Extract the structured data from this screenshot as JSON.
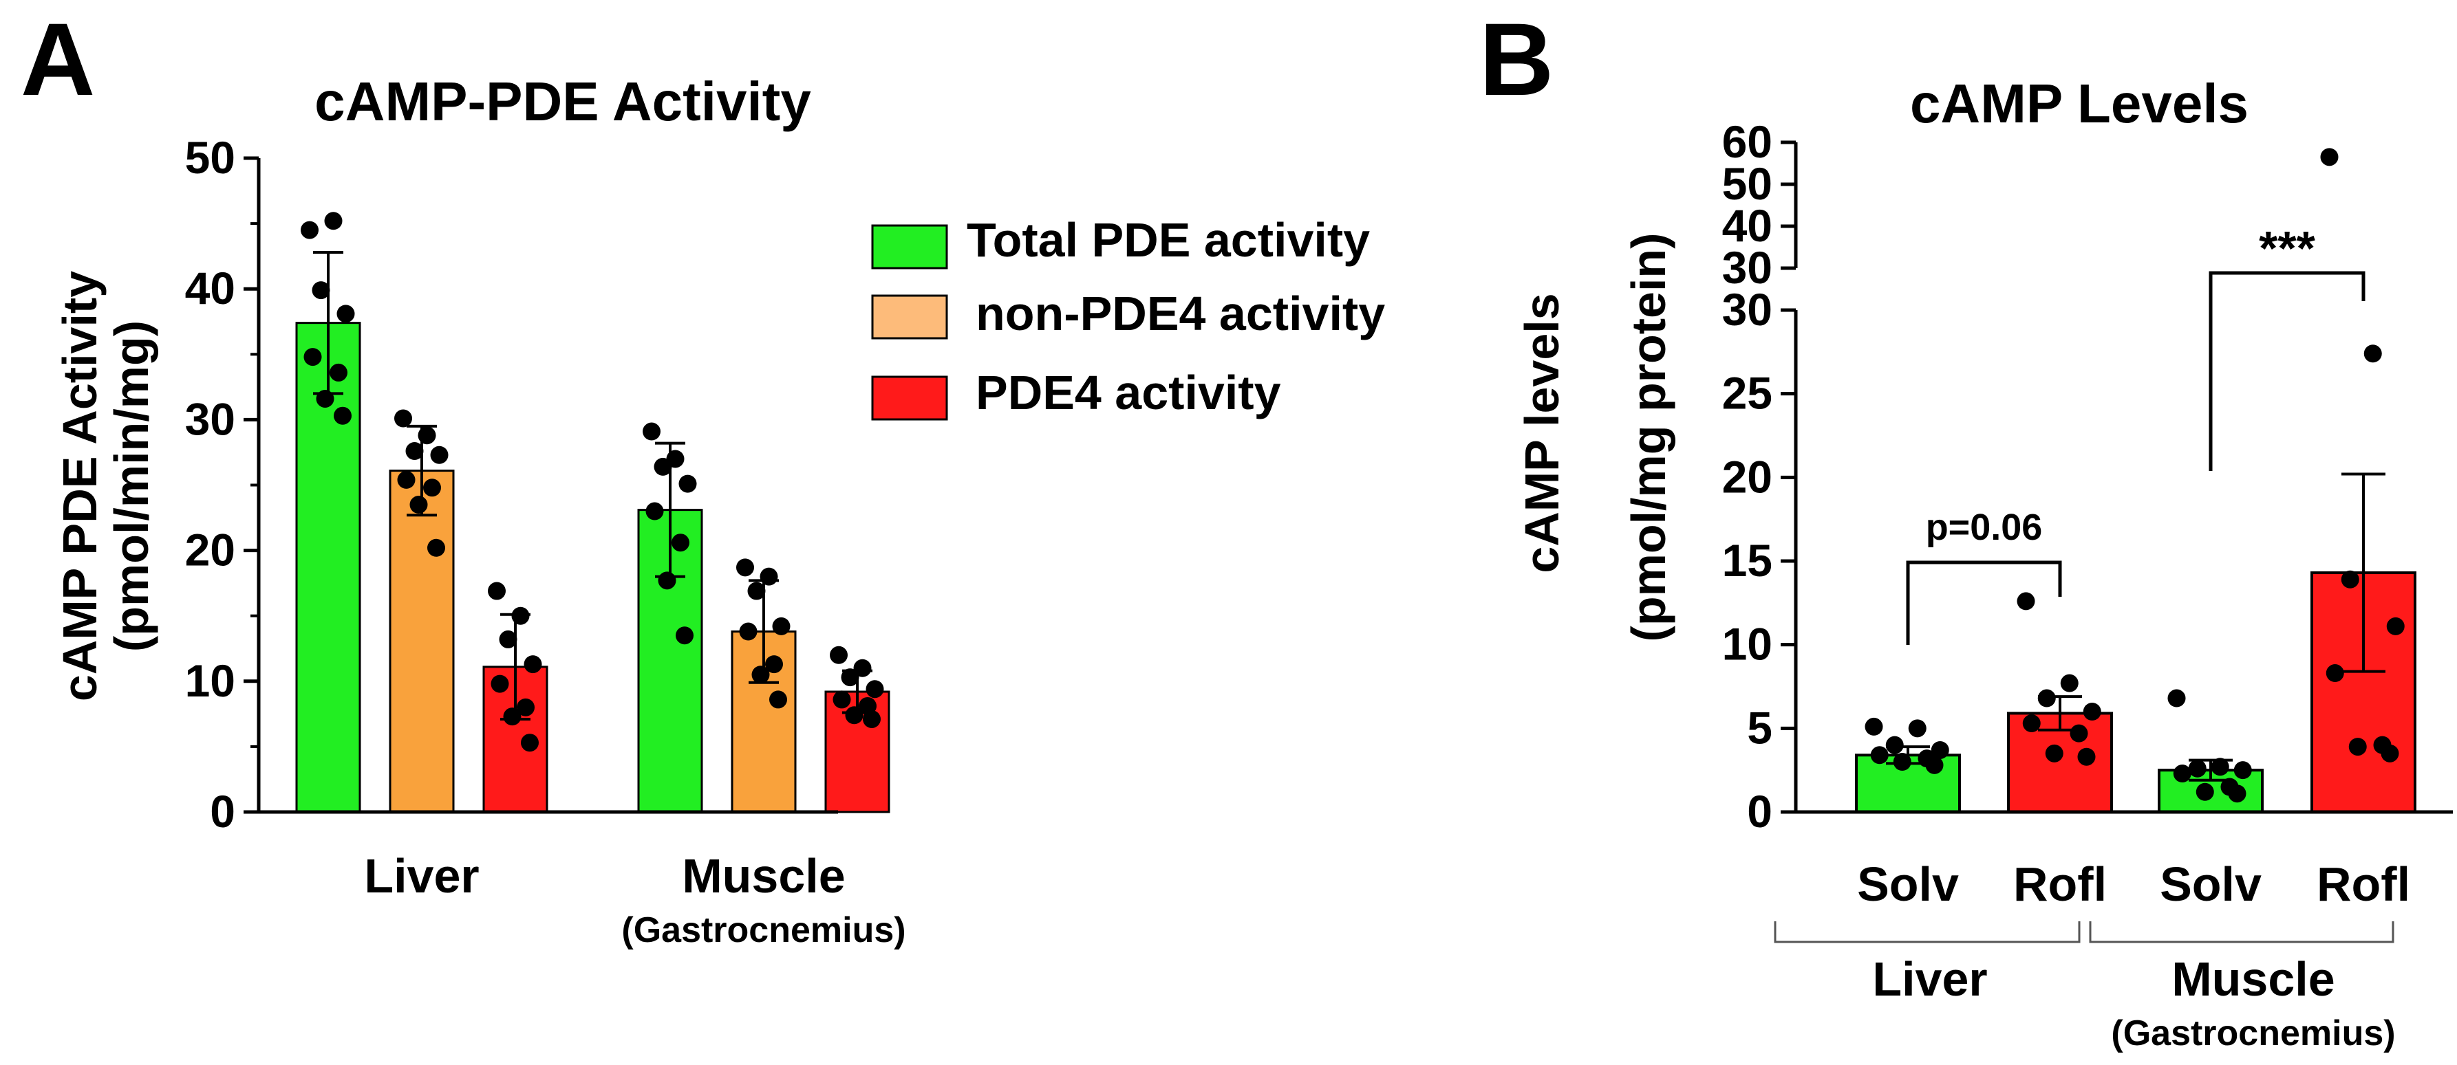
{
  "panels": {
    "a": {
      "letter": "A",
      "chart_data": {
        "type": "bar",
        "title": "cAMP-PDE Activity",
        "ylabel_line1": "cAMP PDE Activity",
        "ylabel_line2": "(pmol/min/mg)",
        "ylim": [
          0,
          50
        ],
        "yticks": [
          "0",
          "10",
          "20",
          "30",
          "40",
          "50"
        ],
        "groups": [
          {
            "label": "Liver",
            "sublabel": ""
          },
          {
            "label": "Muscle",
            "sublabel": "(Gastrocnemius)"
          }
        ],
        "series": [
          {
            "name": "Total PDE activity",
            "color": "#22ee22",
            "values": [
              37.4,
              23.1
            ],
            "error": [
              5.4,
              5.1
            ],
            "points": [
              [
                44.5,
                45.2,
                39.9,
                38.1,
                34.8,
                33.6,
                31.6,
                30.3
              ],
              [
                29.1,
                27.0,
                26.4,
                25.1,
                23.0,
                20.6,
                17.7,
                13.5
              ]
            ]
          },
          {
            "name": "non-PDE4 activity",
            "color": "#f9a23c",
            "values": [
              26.1,
              13.8
            ],
            "error": [
              3.4,
              3.9
            ],
            "points": [
              [
                30.1,
                28.8,
                27.6,
                27.3,
                25.4,
                24.8,
                23.5,
                20.2
              ],
              [
                18.7,
                18.0,
                16.9,
                14.2,
                13.8,
                11.3,
                10.5,
                8.6
              ]
            ]
          },
          {
            "name": "PDE4 activity",
            "color": "#ff1a1a",
            "values": [
              11.1,
              9.2
            ],
            "error": [
              4.0,
              1.6
            ],
            "points": [
              [
                16.9,
                15.0,
                13.2,
                11.3,
                9.8,
                8.0,
                7.3,
                5.3
              ],
              [
                12.0,
                11.0,
                10.3,
                9.4,
                8.6,
                8.1,
                7.4,
                7.1
              ]
            ]
          }
        ]
      }
    },
    "b": {
      "letter": "B",
      "chart_data": {
        "type": "bar",
        "title": "cAMP Levels",
        "ylabel_line1": "cAMP levels",
        "ylabel_line2": "(pmol/mg protein)",
        "ylim_lower": [
          0,
          30
        ],
        "ylim_upper": [
          30,
          60
        ],
        "yticks_lower": [
          "0",
          "5",
          "10",
          "15",
          "20",
          "25",
          "30"
        ],
        "yticks_upper": [
          "30",
          "40",
          "50",
          "60"
        ],
        "categories": [
          "Solv",
          "Rofl",
          "Solv",
          "Rofl"
        ],
        "groups": [
          {
            "label": "Liver",
            "sublabel": ""
          },
          {
            "label": "Muscle",
            "sublabel": "(Gastrocnemius)"
          }
        ],
        "colors": [
          "#22ee22",
          "#ff1a1a",
          "#22ee22",
          "#ff1a1a"
        ],
        "values": [
          3.4,
          5.9,
          2.5,
          14.3
        ],
        "error": [
          0.5,
          1.0,
          0.6,
          5.9
        ],
        "points": [
          [
            5.1,
            5.0,
            4.0,
            3.7,
            3.4,
            3.2,
            3.0,
            2.8
          ],
          [
            12.6,
            7.7,
            6.8,
            6.0,
            5.3,
            4.7,
            3.5,
            3.3
          ],
          [
            6.8,
            2.7,
            2.6,
            2.5,
            2.3,
            1.5,
            1.2,
            1.1
          ],
          [
            56.5,
            27.4,
            13.9,
            11.1,
            8.3,
            4.0,
            3.9,
            3.5
          ]
        ],
        "annotations": [
          {
            "label": "p=0.06",
            "from": 0,
            "to": 1
          },
          {
            "label": "***",
            "from": 2,
            "to": 3
          }
        ]
      }
    }
  }
}
